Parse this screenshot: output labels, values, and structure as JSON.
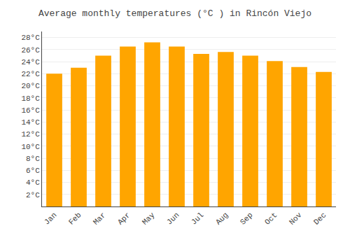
{
  "chart_data": {
    "type": "bar",
    "title": "Average monthly temperatures (°C ) in Rincón Viejo",
    "categories": [
      "Jan",
      "Feb",
      "Mar",
      "Apr",
      "May",
      "Jun",
      "Jul",
      "Aug",
      "Sep",
      "Oct",
      "Nov",
      "Dec"
    ],
    "values": [
      22.0,
      23.0,
      25.0,
      26.5,
      27.2,
      26.5,
      25.3,
      25.6,
      25.0,
      24.1,
      23.1,
      22.3
    ],
    "color": "#FFA500",
    "ylim": [
      0,
      29
    ],
    "yticks": [
      {
        "value": 2,
        "label": "2°C"
      },
      {
        "value": 4,
        "label": "4°C"
      },
      {
        "value": 6,
        "label": "6°C"
      },
      {
        "value": 8,
        "label": "8°C"
      },
      {
        "value": 10,
        "label": "10°C"
      },
      {
        "value": 12,
        "label": "12°C"
      },
      {
        "value": 14,
        "label": "14°C"
      },
      {
        "value": 16,
        "label": "16°C"
      },
      {
        "value": 18,
        "label": "18°C"
      },
      {
        "value": 20,
        "label": "20°C"
      },
      {
        "value": 22,
        "label": "22°C"
      },
      {
        "value": 24,
        "label": "24°C"
      },
      {
        "value": 26,
        "label": "26°C"
      },
      {
        "value": 28,
        "label": "28°C"
      }
    ],
    "grid": true
  }
}
